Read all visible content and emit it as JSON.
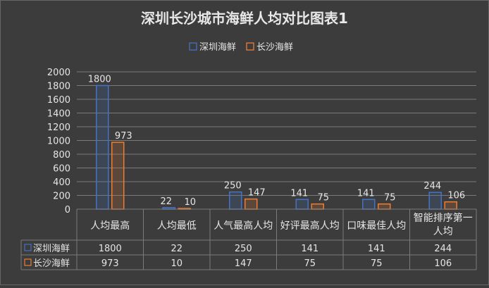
{
  "chart_data": {
    "type": "bar",
    "title": "深圳长沙城市海鲜人均对比图表1",
    "categories": [
      "人均最高",
      "人均最低",
      "人气最高人均",
      "好评最高人均",
      "口味最佳人均",
      "智能排序第一人均"
    ],
    "category_lines": [
      [
        "人均最高"
      ],
      [
        "人均最低"
      ],
      [
        "人气最高人均"
      ],
      [
        "好评最高人均"
      ],
      [
        "口味最佳人均"
      ],
      [
        "智能排序第一",
        "人均"
      ]
    ],
    "series": [
      {
        "name": "深圳海鲜",
        "values": [
          1800,
          22,
          250,
          141,
          141,
          244
        ],
        "color": "#4472c4"
      },
      {
        "name": "长沙海鲜",
        "values": [
          973,
          10,
          147,
          75,
          75,
          106
        ],
        "color": "#ed7d31"
      }
    ],
    "ylim": [
      0,
      2000
    ],
    "yticks": [
      0,
      200,
      400,
      600,
      800,
      1000,
      1200,
      1400,
      1600,
      1800,
      2000
    ],
    "legend_position": "top",
    "grid": true,
    "data_table": true
  }
}
